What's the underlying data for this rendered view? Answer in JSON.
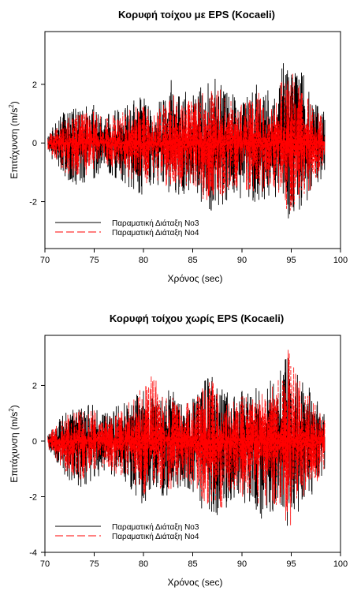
{
  "chart_data": [
    {
      "type": "line",
      "title": "Κορυφή τοίχου με EPS (Kocaeli)",
      "xlabel": "Χρόνος (sec)",
      "ylabel": "Επιτάχυνση (m/s",
      "ylabel_sup": "2",
      "ylabel_end": ")",
      "xlim": [
        70,
        100
      ],
      "ylim": [
        -3.6,
        3.8
      ],
      "xticks": [
        70,
        75,
        80,
        85,
        90,
        95,
        100
      ],
      "yticks": [
        -2,
        0,
        2
      ],
      "grid": false,
      "legend_position": "bottom-left",
      "series": [
        {
          "name": "Παραματική Διάταξη No3",
          "color": "#000000",
          "dash": "solid",
          "envelope": [
            [
              70.3,
              0.3
            ],
            [
              72,
              1.1
            ],
            [
              73.5,
              1.2
            ],
            [
              75,
              1.3
            ],
            [
              76,
              0.9
            ],
            [
              78,
              1.3
            ],
            [
              80,
              1.6
            ],
            [
              81,
              1.2
            ],
            [
              82,
              1.6
            ],
            [
              83,
              2.3
            ],
            [
              84,
              1.8
            ],
            [
              85,
              1.6
            ],
            [
              86,
              2.0
            ],
            [
              87,
              2.3
            ],
            [
              88,
              2.2
            ],
            [
              89,
              1.7
            ],
            [
              90,
              1.6
            ],
            [
              91,
              1.8
            ],
            [
              92,
              2.2
            ],
            [
              93,
              1.6
            ],
            [
              94,
              2.5
            ],
            [
              94.7,
              3.6
            ],
            [
              95.3,
              2.6
            ],
            [
              96,
              2.5
            ],
            [
              97,
              1.8
            ],
            [
              98.4,
              1.0
            ]
          ],
          "min_envelope": [
            [
              70.3,
              -0.3
            ],
            [
              72,
              -1.3
            ],
            [
              73.5,
              -1.5
            ],
            [
              75,
              -1.2
            ],
            [
              76,
              -0.9
            ],
            [
              78,
              -1.4
            ],
            [
              80,
              -1.8
            ],
            [
              81,
              -1.4
            ],
            [
              82,
              -1.9
            ],
            [
              83,
              -1.7
            ],
            [
              84,
              -1.8
            ],
            [
              85,
              -1.7
            ],
            [
              86,
              -2.3
            ],
            [
              87,
              -2.5
            ],
            [
              88,
              -2.2
            ],
            [
              89,
              -1.8
            ],
            [
              90,
              -1.9
            ],
            [
              91,
              -2.0
            ],
            [
              92,
              -2.3
            ],
            [
              93,
              -1.7
            ],
            [
              94,
              -2.2
            ],
            [
              94.7,
              -2.9
            ],
            [
              95.3,
              -2.5
            ],
            [
              96,
              -2.2
            ],
            [
              97,
              -2.0
            ],
            [
              98.4,
              -1.0
            ]
          ]
        },
        {
          "name": "Παραματική Διάταξη No4",
          "color": "#ff0000",
          "dash": "dashed",
          "envelope": [
            [
              70.3,
              0.25
            ],
            [
              72,
              0.9
            ],
            [
              73.5,
              1.0
            ],
            [
              75,
              1.1
            ],
            [
              76,
              0.8
            ],
            [
              78,
              1.1
            ],
            [
              80,
              1.3
            ],
            [
              81,
              1.0
            ],
            [
              82,
              1.4
            ],
            [
              83,
              1.9
            ],
            [
              84,
              1.5
            ],
            [
              85,
              1.4
            ],
            [
              86,
              1.7
            ],
            [
              87,
              1.9
            ],
            [
              88,
              1.8
            ],
            [
              89,
              1.4
            ],
            [
              90,
              1.3
            ],
            [
              91,
              1.5
            ],
            [
              92,
              1.8
            ],
            [
              93,
              1.3
            ],
            [
              94,
              2.1
            ],
            [
              94.7,
              2.9
            ],
            [
              95.3,
              2.2
            ],
            [
              96,
              2.0
            ],
            [
              97,
              1.5
            ],
            [
              98.4,
              0.8
            ]
          ],
          "min_envelope": [
            [
              70.3,
              -0.25
            ],
            [
              72,
              -1.0
            ],
            [
              73.5,
              -1.2
            ],
            [
              75,
              -1.0
            ],
            [
              76,
              -0.7
            ],
            [
              78,
              -1.1
            ],
            [
              80,
              -1.5
            ],
            [
              81,
              -1.1
            ],
            [
              82,
              -1.5
            ],
            [
              83,
              -1.4
            ],
            [
              84,
              -1.5
            ],
            [
              85,
              -1.4
            ],
            [
              86,
              -1.9
            ],
            [
              87,
              -2.0
            ],
            [
              88,
              -1.8
            ],
            [
              89,
              -1.5
            ],
            [
              90,
              -1.6
            ],
            [
              91,
              -1.6
            ],
            [
              92,
              -1.9
            ],
            [
              93,
              -1.4
            ],
            [
              94,
              -1.8
            ],
            [
              94.7,
              -2.4
            ],
            [
              95.3,
              -2.1
            ],
            [
              96,
              -1.8
            ],
            [
              97,
              -1.6
            ],
            [
              98.4,
              -0.8
            ]
          ]
        }
      ]
    },
    {
      "type": "line",
      "title": "Κορυφή τοίχου χωρίς EPS (Kocaeli)",
      "xlabel": "Χρόνος (sec)",
      "ylabel": "Επιτάχυνση (m/s",
      "ylabel_sup": "2",
      "ylabel_end": ")",
      "xlim": [
        70,
        100
      ],
      "ylim": [
        -4,
        3.8
      ],
      "xticks": [
        70,
        75,
        80,
        85,
        90,
        95,
        100
      ],
      "yticks": [
        -4,
        -2,
        0,
        2
      ],
      "grid": false,
      "legend_position": "bottom-left",
      "series": [
        {
          "name": "Παραματική Διάταξη No3",
          "color": "#000000",
          "dash": "solid",
          "envelope": [
            [
              70.3,
              0.3
            ],
            [
              72,
              1.0
            ],
            [
              73.5,
              1.3
            ],
            [
              75,
              1.3
            ],
            [
              76,
              1.0
            ],
            [
              78,
              1.4
            ],
            [
              80,
              1.8
            ],
            [
              81,
              1.5
            ],
            [
              82,
              1.6
            ],
            [
              83,
              2.0
            ],
            [
              84,
              1.6
            ],
            [
              85,
              1.5
            ],
            [
              86,
              2.2
            ],
            [
              87,
              2.6
            ],
            [
              88,
              1.9
            ],
            [
              89,
              1.6
            ],
            [
              90,
              1.8
            ],
            [
              91,
              1.9
            ],
            [
              92,
              2.0
            ],
            [
              93,
              2.2
            ],
            [
              94,
              2.6
            ],
            [
              94.7,
              3.2
            ],
            [
              95.3,
              2.3
            ],
            [
              96,
              2.5
            ],
            [
              97,
              1.8
            ],
            [
              98.4,
              1.0
            ]
          ],
          "min_envelope": [
            [
              70.3,
              -0.3
            ],
            [
              72,
              -1.3
            ],
            [
              73.5,
              -1.7
            ],
            [
              75,
              -1.4
            ],
            [
              76,
              -1.1
            ],
            [
              78,
              -1.5
            ],
            [
              80,
              -2.3
            ],
            [
              81,
              -1.6
            ],
            [
              82,
              -2.0
            ],
            [
              83,
              -1.9
            ],
            [
              84,
              -1.7
            ],
            [
              85,
              -1.8
            ],
            [
              86,
              -2.5
            ],
            [
              87,
              -2.7
            ],
            [
              88,
              -3.0
            ],
            [
              89,
              -2.0
            ],
            [
              90,
              -2.2
            ],
            [
              91,
              -2.3
            ],
            [
              92,
              -2.8
            ],
            [
              93,
              -2.5
            ],
            [
              94,
              -2.7
            ],
            [
              94.7,
              -3.8
            ],
            [
              95.3,
              -2.9
            ],
            [
              96,
              -2.4
            ],
            [
              97,
              -2.1
            ],
            [
              98.4,
              -1.1
            ]
          ]
        },
        {
          "name": "Παραματική Διάταξη No4",
          "color": "#ff0000",
          "dash": "dashed",
          "envelope": [
            [
              70.3,
              0.25
            ],
            [
              72,
              0.9
            ],
            [
              73.5,
              1.1
            ],
            [
              75,
              1.1
            ],
            [
              76,
              0.9
            ],
            [
              78,
              1.2
            ],
            [
              80,
              2.0
            ],
            [
              81,
              2.5
            ],
            [
              82,
              1.5
            ],
            [
              83,
              1.8
            ],
            [
              84,
              1.4
            ],
            [
              85,
              1.5
            ],
            [
              86,
              2.0
            ],
            [
              87,
              2.2
            ],
            [
              88,
              1.6
            ],
            [
              89,
              1.4
            ],
            [
              90,
              1.6
            ],
            [
              91,
              1.7
            ],
            [
              92,
              1.9
            ],
            [
              93,
              2.1
            ],
            [
              94,
              2.3
            ],
            [
              94.7,
              3.4
            ],
            [
              95.3,
              2.6
            ],
            [
              96,
              2.2
            ],
            [
              97,
              1.6
            ],
            [
              98.4,
              0.9
            ]
          ],
          "min_envelope": [
            [
              70.3,
              -0.25
            ],
            [
              72,
              -1.1
            ],
            [
              73.5,
              -1.4
            ],
            [
              75,
              -1.2
            ],
            [
              76,
              -1.0
            ],
            [
              78,
              -1.3
            ],
            [
              80,
              -2.0
            ],
            [
              81,
              -1.5
            ],
            [
              82,
              -1.8
            ],
            [
              83,
              -1.7
            ],
            [
              84,
              -1.5
            ],
            [
              85,
              -1.6
            ],
            [
              86,
              -2.2
            ],
            [
              87,
              -2.3
            ],
            [
              88,
              -2.4
            ],
            [
              89,
              -1.8
            ],
            [
              90,
              -2.0
            ],
            [
              91,
              -2.0
            ],
            [
              92,
              -2.4
            ],
            [
              93,
              -2.2
            ],
            [
              94,
              -2.4
            ],
            [
              94.7,
              -3.3
            ],
            [
              95.3,
              -2.6
            ],
            [
              96,
              -2.1
            ],
            [
              97,
              -1.8
            ],
            [
              98.4,
              -1.0
            ]
          ]
        }
      ]
    }
  ]
}
